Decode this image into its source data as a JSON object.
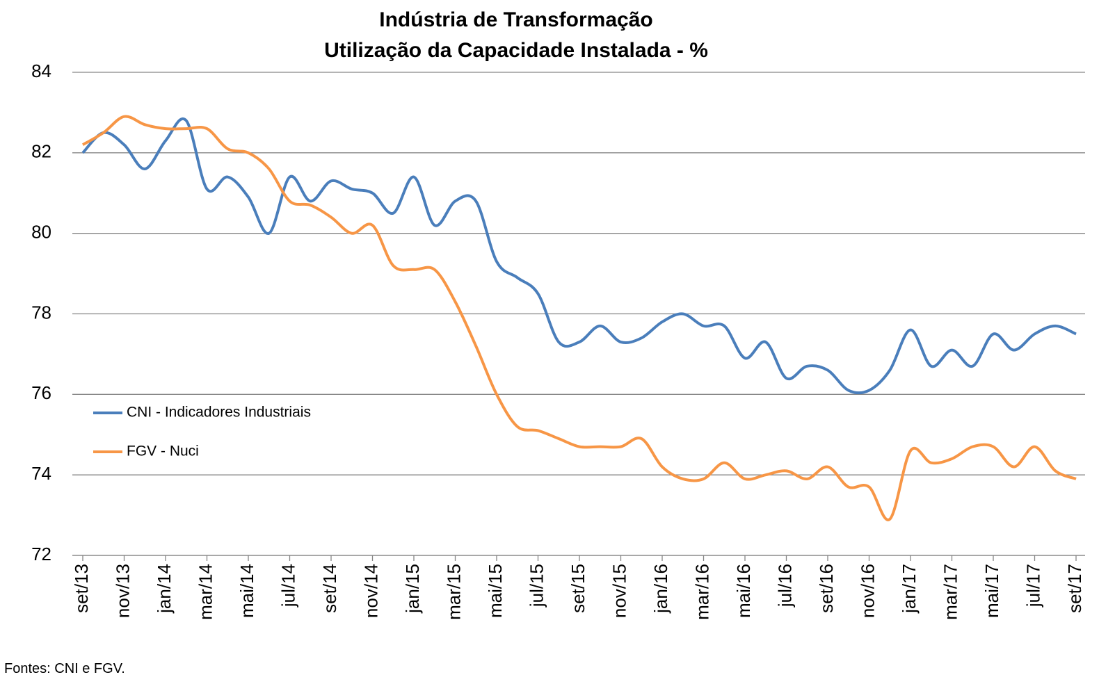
{
  "chart_data": {
    "type": "line",
    "title": "Indústria de Transformação",
    "subtitle": "Utilização da Capacidade Instalada - %",
    "source": "Fontes: CNI e FGV.",
    "categories": [
      "set/13",
      null,
      "nov/13",
      null,
      "jan/14",
      null,
      "mar/14",
      null,
      "mai/14",
      null,
      "jul/14",
      null,
      "set/14",
      null,
      "nov/14",
      null,
      "jan/15",
      null,
      "mar/15",
      null,
      "mai/15",
      null,
      "jul/15",
      null,
      "set/15",
      null,
      "nov/15",
      null,
      "jan/16",
      null,
      "mar/16",
      null,
      "mai/16",
      null,
      "jul/16",
      null,
      "set/16",
      null,
      "nov/16",
      null,
      "jan/17",
      null,
      "mar/17",
      null,
      "mai/17",
      null,
      "jul/17",
      null,
      "set/17"
    ],
    "series": [
      {
        "name": "CNI - Indicadores Industriais",
        "color": "#4a7ebb",
        "values": [
          82.0,
          82.5,
          82.2,
          81.6,
          82.3,
          82.8,
          81.1,
          81.4,
          80.9,
          80.0,
          81.4,
          80.8,
          81.3,
          81.1,
          81.0,
          80.5,
          81.4,
          80.2,
          80.8,
          80.8,
          79.3,
          78.9,
          78.5,
          77.3,
          77.3,
          77.7,
          77.3,
          77.4,
          77.8,
          78.0,
          77.7,
          77.7,
          76.9,
          77.3,
          76.4,
          76.7,
          76.6,
          76.1,
          76.1,
          76.6,
          77.6,
          76.7,
          77.1,
          76.7,
          77.5,
          77.1,
          77.5,
          77.7,
          77.5
        ]
      },
      {
        "name": "FGV - Nuci",
        "color": "#f79646",
        "values": [
          82.2,
          82.5,
          82.9,
          82.7,
          82.6,
          82.6,
          82.6,
          82.1,
          82.0,
          81.6,
          80.8,
          80.7,
          80.4,
          80.0,
          80.2,
          79.2,
          79.1,
          79.1,
          78.3,
          77.2,
          76.0,
          75.2,
          75.1,
          74.9,
          74.7,
          74.7,
          74.7,
          74.9,
          74.2,
          73.9,
          73.9,
          74.3,
          73.9,
          74.0,
          74.1,
          73.9,
          74.2,
          73.7,
          73.7,
          72.9,
          74.6,
          74.3,
          74.4,
          74.7,
          74.7,
          74.2,
          74.7,
          74.1,
          73.9
        ]
      }
    ],
    "ylim": [
      72,
      84
    ],
    "yticks": [
      72,
      74,
      76,
      78,
      80,
      82,
      84
    ],
    "grid": true,
    "legend": "left"
  }
}
